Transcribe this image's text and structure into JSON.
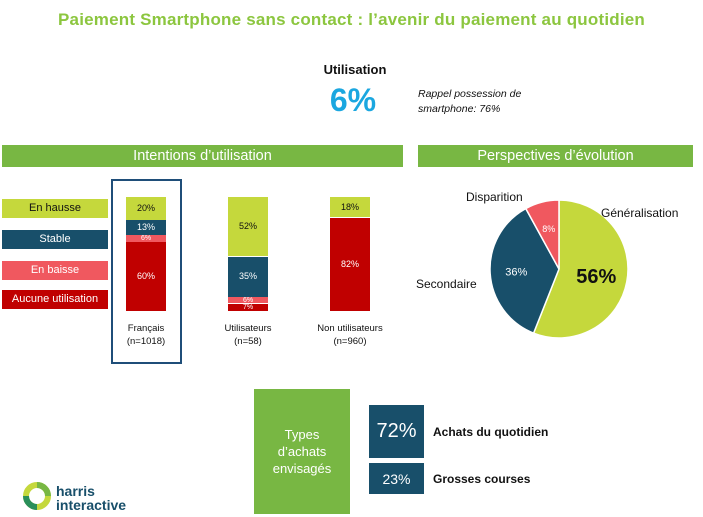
{
  "title": "Paiement Smartphone sans contact : l’avenir du paiement au quotidien",
  "utilisation": {
    "label": "Utilisation",
    "value": "6%"
  },
  "rappel": {
    "line1": "Rappel possession de",
    "line2": "smartphone: 76%"
  },
  "intentions_header": "Intentions d’utilisation",
  "perspectives_header": "Perspectives d’évolution",
  "colors": {
    "en_hausse": "#c5d83c",
    "stable": "#184f6a",
    "en_baisse": "#f0585f",
    "aucune": "#c00000",
    "green": "#78b743",
    "title_green": "#8cc63f",
    "blue": "#1ba7e0"
  },
  "legend": [
    "En hausse",
    "Stable",
    "En baisse",
    "Aucune utilisation"
  ],
  "chart_data": [
    {
      "type": "bar",
      "stacked": true,
      "categories": [
        "Français",
        "Utilisateurs",
        "Non utilisateurs"
      ],
      "category_sublabels": [
        "(n=1018)",
        "(n=58)",
        "(n=960)"
      ],
      "series": [
        {
          "name": "En hausse",
          "values": [
            20,
            52,
            18
          ],
          "labels": [
            "20%",
            "52%",
            "18%"
          ]
        },
        {
          "name": "Stable",
          "values": [
            13,
            35,
            0
          ],
          "labels": [
            "13%",
            "35%",
            ""
          ]
        },
        {
          "name": "En baisse",
          "values": [
            6,
            6,
            0
          ],
          "labels": [
            "6%",
            "6%",
            ""
          ]
        },
        {
          "name": "Aucune utilisation",
          "values": [
            60,
            7,
            82
          ],
          "labels": [
            "60%",
            "7%",
            "82%"
          ]
        }
      ],
      "ylim": [
        0,
        100
      ]
    },
    {
      "type": "pie",
      "slices": [
        {
          "name": "Généralisation",
          "value": 56,
          "label": "56%"
        },
        {
          "name": "Secondaire",
          "value": 36,
          "label": "36%"
        },
        {
          "name": "Disparition",
          "value": 8,
          "label": "8%"
        }
      ]
    }
  ],
  "types_achats": {
    "label_lines": [
      "Types",
      "d’achats",
      "envisagés"
    ],
    "items": [
      {
        "value": "72%",
        "label": "Achats du quotidien"
      },
      {
        "value": "23%",
        "label": "Grosses courses"
      }
    ]
  },
  "logo": {
    "line1": "harris",
    "line2": "interactive"
  }
}
